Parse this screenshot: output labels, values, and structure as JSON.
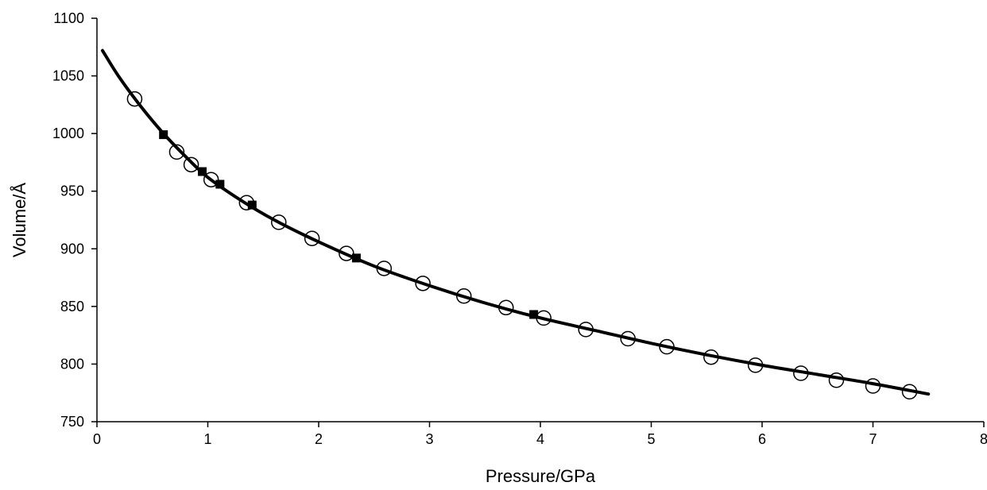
{
  "chart_data": {
    "type": "scatter",
    "title": "",
    "xlabel": "Pressure/GPa",
    "ylabel": "Volume/Å",
    "xlim": [
      0,
      8
    ],
    "ylim": [
      750,
      1100
    ],
    "xticks": [
      0,
      1,
      2,
      3,
      4,
      5,
      6,
      7,
      8
    ],
    "yticks": [
      750,
      800,
      850,
      900,
      950,
      1000,
      1050,
      1100
    ],
    "grid": false,
    "legend": "none",
    "colors": {
      "line": "#000000",
      "marker": "#000000",
      "background": "#ffffff"
    },
    "series": [
      {
        "marker": "open-circle",
        "x": [
          0.34,
          0.72,
          0.85,
          1.03,
          1.35,
          1.64,
          1.94,
          2.25,
          2.59,
          2.94,
          3.31,
          3.69,
          4.03,
          4.41,
          4.79,
          5.14,
          5.54,
          5.94,
          6.35,
          6.67,
          7.0,
          7.33
        ],
        "y": [
          1030,
          984,
          973,
          960,
          940,
          923,
          909,
          896,
          883,
          870,
          859,
          849,
          840,
          830,
          822,
          815,
          806,
          799,
          792,
          786,
          781,
          776
        ]
      },
      {
        "marker": "filled-square",
        "x": [
          0.6,
          0.95,
          1.11,
          1.4,
          2.34,
          3.94
        ],
        "y": [
          999,
          967,
          956,
          938,
          892,
          843
        ]
      },
      {
        "marker": "line",
        "x": [
          0.05,
          0.2,
          0.4,
          0.6,
          0.8,
          1.0,
          1.3,
          1.6,
          2.0,
          2.5,
          3.0,
          3.5,
          4.0,
          4.5,
          5.0,
          5.5,
          6.0,
          6.5,
          7.0,
          7.5
        ],
        "y": [
          1072,
          1049,
          1023,
          1000,
          980,
          962,
          942,
          925,
          906,
          885,
          868,
          853,
          840,
          829,
          818,
          808,
          799,
          791,
          783,
          774
        ]
      }
    ]
  }
}
